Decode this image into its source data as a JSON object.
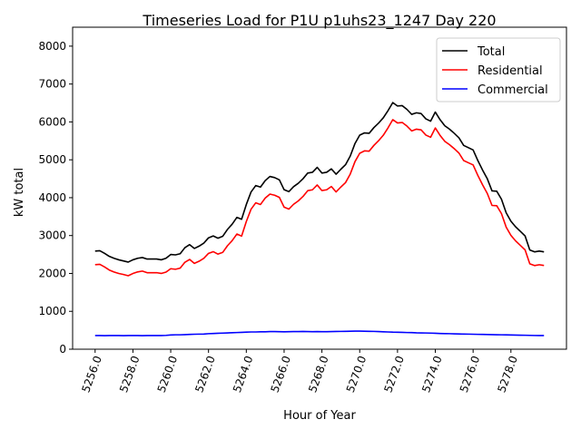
{
  "chart_data": {
    "type": "line",
    "title": "Timeseries Load for P1U p1uhs23_1247  Day 220",
    "xlabel": "Hour of Year",
    "ylabel": "kW total",
    "x_start": 5256.0,
    "x_step": 0.25,
    "xlim": [
      5254.81,
      5280.94
    ],
    "ylim": [
      0,
      8500
    ],
    "xticks": [
      5256,
      5258,
      5260,
      5262,
      5264,
      5266,
      5268,
      5270,
      5272,
      5274,
      5276,
      5278
    ],
    "xtick_labels": [
      "5256.0",
      "5258.0",
      "5260.0",
      "5262.0",
      "5264.0",
      "5266.0",
      "5268.0",
      "5270.0",
      "5272.0",
      "5274.0",
      "5276.0",
      "5278.0"
    ],
    "yticks": [
      0,
      1000,
      2000,
      3000,
      4000,
      5000,
      6000,
      7000,
      8000
    ],
    "ytick_labels": [
      "0",
      "1000",
      "2000",
      "3000",
      "4000",
      "5000",
      "6000",
      "7000",
      "8000"
    ],
    "grid": false,
    "legend_position": "top-right",
    "series": [
      {
        "name": "Total",
        "color": "#000000",
        "values": [
          2590,
          2600,
          2530,
          2450,
          2400,
          2360,
          2330,
          2300,
          2360,
          2400,
          2420,
          2380,
          2380,
          2380,
          2360,
          2400,
          2500,
          2490,
          2520,
          2680,
          2760,
          2660,
          2720,
          2800,
          2940,
          2990,
          2930,
          2980,
          3160,
          3300,
          3480,
          3430,
          3820,
          4150,
          4320,
          4280,
          4450,
          4560,
          4530,
          4470,
          4210,
          4160,
          4290,
          4380,
          4500,
          4650,
          4670,
          4800,
          4650,
          4670,
          4760,
          4620,
          4750,
          4870,
          5100,
          5430,
          5650,
          5710,
          5700,
          5850,
          5970,
          6110,
          6300,
          6510,
          6420,
          6430,
          6330,
          6200,
          6240,
          6220,
          6080,
          6020,
          6260,
          6060,
          5900,
          5810,
          5700,
          5580,
          5380,
          5320,
          5260,
          4980,
          4730,
          4500,
          4180,
          4170,
          3960,
          3600,
          3380,
          3230,
          3110,
          2990,
          2620,
          2570,
          2590,
          2570
        ]
      },
      {
        "name": "Residential",
        "color": "#ff0000",
        "values": [
          2230,
          2240,
          2172,
          2090,
          2038,
          2000,
          1972,
          1940,
          1998,
          2040,
          2062,
          2020,
          2018,
          2020,
          2000,
          2035,
          2125,
          2110,
          2140,
          2295,
          2370,
          2265,
          2322,
          2400,
          2530,
          2575,
          2510,
          2555,
          2730,
          2865,
          3040,
          2985,
          3370,
          3695,
          3865,
          3820,
          3990,
          4095,
          4065,
          4008,
          3750,
          3698,
          3825,
          3915,
          4032,
          4185,
          4208,
          4335,
          4188,
          4208,
          4295,
          4152,
          4280,
          4398,
          4625,
          4952,
          5172,
          5235,
          5228,
          5380,
          5505,
          5650,
          5845,
          6060,
          5972,
          5985,
          5890,
          5762,
          5808,
          5790,
          5652,
          5595,
          5840,
          5645,
          5488,
          5400,
          5295,
          5178,
          4980,
          4922,
          4865,
          4588,
          4340,
          4112,
          3795,
          3788,
          3580,
          3222,
          3005,
          2858,
          2740,
          2622,
          2255,
          2208,
          2230,
          2210
        ]
      },
      {
        "name": "Commercial",
        "color": "#0000ff",
        "values": [
          360,
          360,
          358,
          360,
          362,
          360,
          358,
          360,
          362,
          360,
          358,
          360,
          362,
          360,
          360,
          365,
          375,
          380,
          380,
          385,
          390,
          395,
          398,
          400,
          410,
          415,
          420,
          425,
          430,
          435,
          440,
          445,
          450,
          455,
          455,
          460,
          460,
          465,
          465,
          462,
          460,
          462,
          465,
          465,
          468,
          465,
          462,
          465,
          462,
          462,
          465,
          468,
          470,
          472,
          475,
          478,
          478,
          475,
          472,
          470,
          465,
          460,
          455,
          450,
          448,
          445,
          440,
          438,
          432,
          430,
          428,
          425,
          420,
          415,
          412,
          410,
          405,
          402,
          400,
          398,
          395,
          392,
          390,
          388,
          385,
          382,
          380,
          378,
          375,
          372,
          370,
          368,
          365,
          362,
          360,
          360
        ]
      }
    ]
  }
}
